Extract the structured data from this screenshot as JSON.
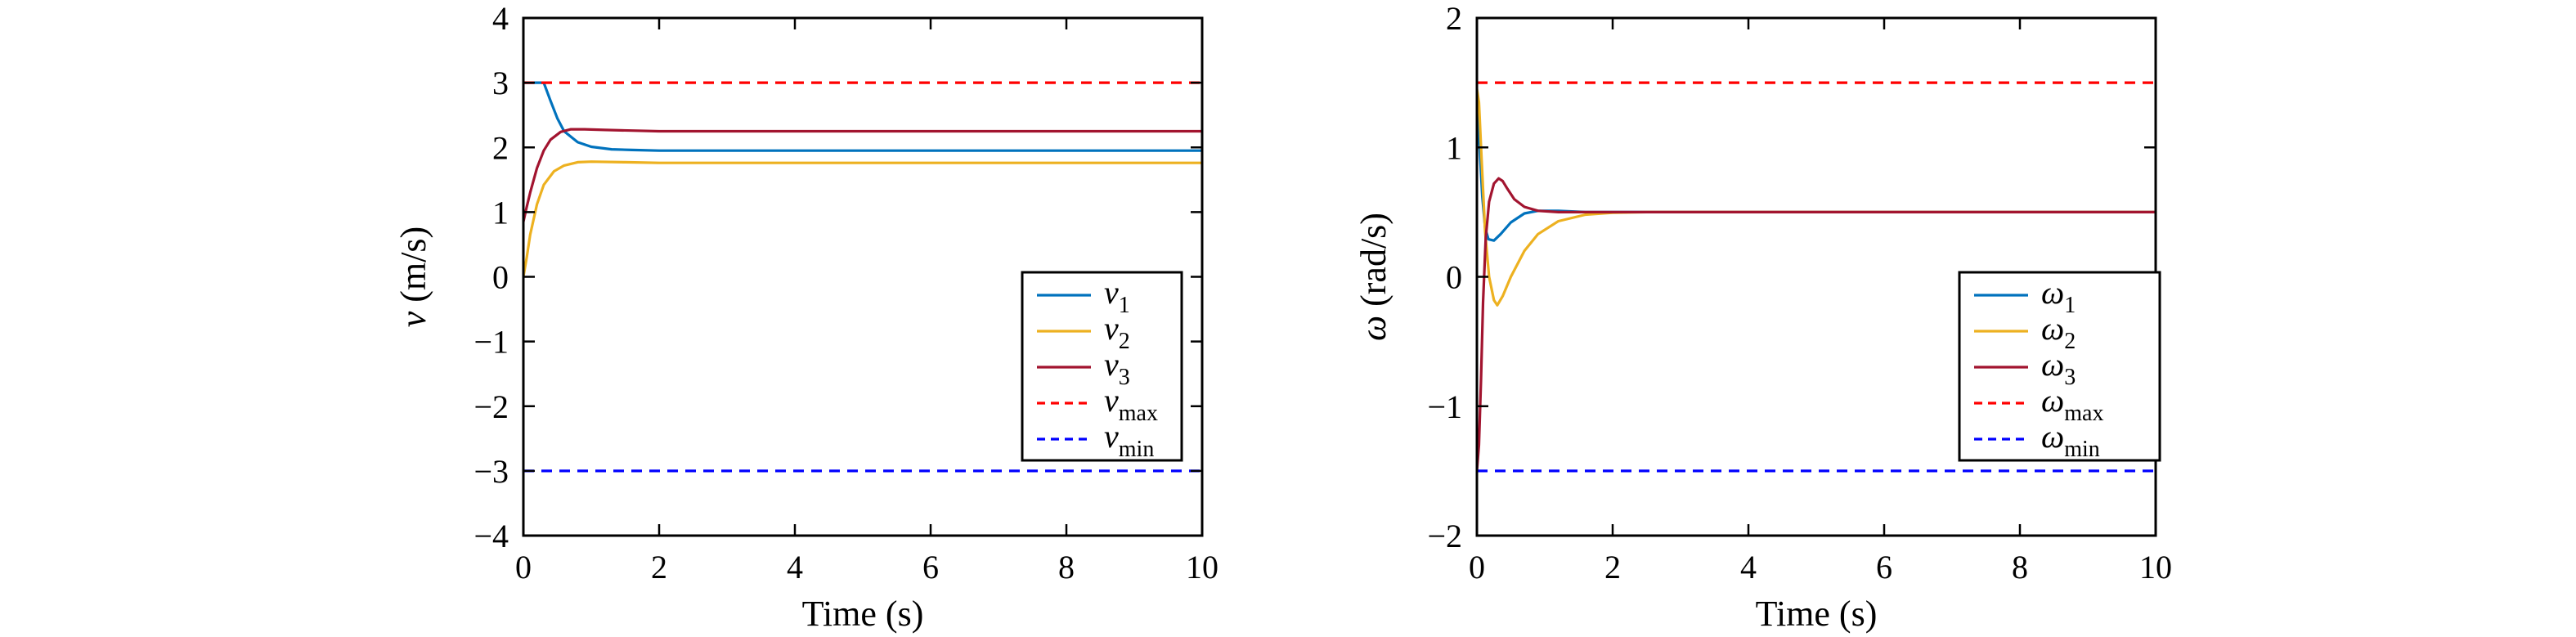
{
  "chart_data": [
    {
      "type": "line",
      "xlabel": "Time (s)",
      "ylabel": "v (m/s)",
      "ylabel_parts": [
        "v",
        " (m/s)"
      ],
      "xlim": [
        0,
        10
      ],
      "ylim": [
        -4,
        4
      ],
      "xticks": [
        0,
        2,
        4,
        6,
        8,
        10
      ],
      "xtick_labels": [
        "0",
        "2",
        "4",
        "6",
        "8",
        "10"
      ],
      "yticks": [
        -4,
        -3,
        -2,
        -1,
        0,
        1,
        2,
        3,
        4
      ],
      "ytick_labels": [
        "−4",
        "−3",
        "−2",
        "−1",
        "0",
        "1",
        "2",
        "3",
        "4"
      ],
      "grid": false,
      "legend_position": "lower-right",
      "series": [
        {
          "name": "v1",
          "label_main": "v",
          "label_sub": "1",
          "color": "#0072BD",
          "style": "solid",
          "x": [
            0,
            0.1,
            0.3,
            0.4,
            0.5,
            0.6,
            0.8,
            1.0,
            1.3,
            1.6,
            2.0,
            3.0,
            5.0,
            10.0
          ],
          "y": [
            3.0,
            3.0,
            3.0,
            2.72,
            2.45,
            2.25,
            2.08,
            2.01,
            1.97,
            1.96,
            1.95,
            1.95,
            1.95,
            1.95
          ]
        },
        {
          "name": "v2",
          "label_main": "v",
          "label_sub": "2",
          "color": "#EDB120",
          "style": "solid",
          "x": [
            0,
            0.05,
            0.1,
            0.2,
            0.3,
            0.45,
            0.6,
            0.8,
            1.0,
            1.5,
            2.0,
            3.0,
            5.0,
            10.0
          ],
          "y": [
            0.0,
            0.3,
            0.65,
            1.12,
            1.42,
            1.63,
            1.72,
            1.77,
            1.78,
            1.77,
            1.76,
            1.76,
            1.76,
            1.76
          ]
        },
        {
          "name": "v3",
          "label_main": "v",
          "label_sub": "3",
          "color": "#A2142F",
          "style": "solid",
          "x": [
            0,
            0.05,
            0.1,
            0.2,
            0.3,
            0.4,
            0.55,
            0.7,
            0.9,
            1.2,
            1.6,
            2.0,
            3.0,
            5.0,
            10.0
          ],
          "y": [
            0.85,
            1.08,
            1.3,
            1.68,
            1.95,
            2.12,
            2.24,
            2.28,
            2.28,
            2.27,
            2.26,
            2.25,
            2.25,
            2.25,
            2.25
          ]
        },
        {
          "name": "vmax",
          "label_main": "v",
          "label_sub": "max",
          "color": "#FF0000",
          "style": "dashed",
          "x": [
            0,
            10
          ],
          "y": [
            3,
            3
          ]
        },
        {
          "name": "vmin",
          "label_main": "v",
          "label_sub": "min",
          "color": "#0000FF",
          "style": "dashed",
          "x": [
            0,
            10
          ],
          "y": [
            -3,
            -3
          ]
        }
      ]
    },
    {
      "type": "line",
      "xlabel": "Time (s)",
      "ylabel": "ω (rad/s)",
      "ylabel_parts": [
        "ω",
        " (rad/s)"
      ],
      "xlim": [
        0,
        10
      ],
      "ylim": [
        -2,
        2
      ],
      "xticks": [
        0,
        2,
        4,
        6,
        8,
        10
      ],
      "xtick_labels": [
        "0",
        "2",
        "4",
        "6",
        "8",
        "10"
      ],
      "yticks": [
        -2,
        -1,
        0,
        1,
        2
      ],
      "ytick_labels": [
        "−2",
        "−1",
        "0",
        "1",
        "2"
      ],
      "grid": false,
      "legend_position": "lower-right",
      "series": [
        {
          "name": "ω1",
          "label_main": "ω",
          "label_sub": "1",
          "color": "#0072BD",
          "style": "solid",
          "x": [
            0,
            0.03,
            0.08,
            0.12,
            0.17,
            0.25,
            0.35,
            0.5,
            0.7,
            0.9,
            1.2,
            1.6,
            2.0,
            3.0,
            10.0
          ],
          "y": [
            1.35,
            1.1,
            0.62,
            0.38,
            0.29,
            0.28,
            0.33,
            0.42,
            0.49,
            0.51,
            0.51,
            0.5,
            0.5,
            0.5,
            0.5
          ]
        },
        {
          "name": "ω2",
          "label_main": "ω",
          "label_sub": "2",
          "color": "#EDB120",
          "style": "solid",
          "x": [
            0,
            0.03,
            0.07,
            0.12,
            0.18,
            0.25,
            0.3,
            0.38,
            0.5,
            0.7,
            0.9,
            1.2,
            1.6,
            2.0,
            2.5,
            3.0,
            10.0
          ],
          "y": [
            1.45,
            1.35,
            0.9,
            0.35,
            0.0,
            -0.18,
            -0.22,
            -0.15,
            0.0,
            0.2,
            0.33,
            0.43,
            0.48,
            0.495,
            0.5,
            0.5,
            0.5
          ]
        },
        {
          "name": "ω3",
          "label_main": "ω",
          "label_sub": "3",
          "color": "#A2142F",
          "style": "solid",
          "x": [
            0,
            0.03,
            0.06,
            0.09,
            0.13,
            0.18,
            0.25,
            0.32,
            0.38,
            0.45,
            0.55,
            0.7,
            0.9,
            1.2,
            1.6,
            2.0,
            3.0,
            10.0
          ],
          "y": [
            -1.5,
            -1.3,
            -0.8,
            -0.2,
            0.3,
            0.58,
            0.72,
            0.76,
            0.74,
            0.68,
            0.6,
            0.54,
            0.51,
            0.5,
            0.5,
            0.5,
            0.5,
            0.5
          ]
        },
        {
          "name": "ωmax",
          "label_main": "ω",
          "label_sub": "max",
          "color": "#FF0000",
          "style": "dashed",
          "x": [
            0,
            10
          ],
          "y": [
            1.5,
            1.5
          ]
        },
        {
          "name": "ωmin",
          "label_main": "ω",
          "label_sub": "min",
          "color": "#0000FF",
          "style": "dashed",
          "x": [
            0,
            10
          ],
          "y": [
            -1.5,
            -1.5
          ]
        }
      ]
    }
  ]
}
